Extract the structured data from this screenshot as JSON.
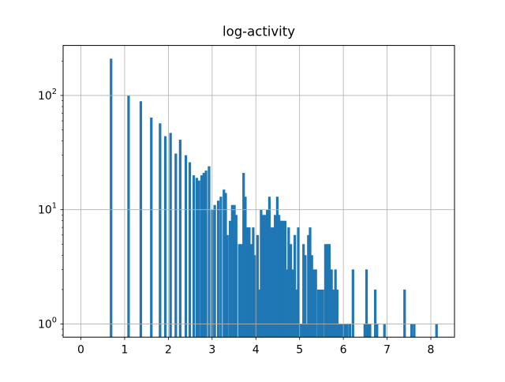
{
  "figure": {
    "background": "#ffffff"
  },
  "chart_data": {
    "type": "histogram",
    "title": "log-activity",
    "xlabel": "",
    "ylabel": "",
    "yscale": "log",
    "xlim": [
      -0.406,
      8.541
    ],
    "ylim": [
      0.766,
      274
    ],
    "x_tick_values": [
      0,
      1,
      2,
      3,
      4,
      5,
      6,
      7,
      8
    ],
    "x_tick_labels": [
      "0",
      "1",
      "2",
      "3",
      "4",
      "5",
      "6",
      "7",
      "8"
    ],
    "y_tick_values": [
      1,
      10,
      100
    ],
    "y_tick_labels": [
      {
        "mantissa": "10",
        "sup": "0"
      },
      {
        "mantissa": "10",
        "sup": "1"
      },
      {
        "mantissa": "10",
        "sup": "2"
      }
    ],
    "grid": true,
    "grid_over_bars": true,
    "bin_width": 0.058,
    "bars": [
      [
        0.69,
        210
      ],
      [
        1.09,
        100
      ],
      [
        1.37,
        89
      ],
      [
        1.61,
        64
      ],
      [
        1.81,
        57
      ],
      [
        1.93,
        44
      ],
      [
        2.05,
        47
      ],
      [
        2.17,
        31
      ],
      [
        2.27,
        41
      ],
      [
        2.4,
        30
      ],
      [
        2.49,
        26
      ],
      [
        2.58,
        20
      ],
      [
        2.65,
        19
      ],
      [
        2.7,
        18
      ],
      [
        2.76,
        20
      ],
      [
        2.81,
        21
      ],
      [
        2.86,
        22
      ],
      [
        2.93,
        24
      ],
      [
        3.0,
        10
      ],
      [
        3.06,
        11
      ],
      [
        3.14,
        12
      ],
      [
        3.2,
        13
      ],
      [
        3.27,
        15
      ],
      [
        3.31,
        14
      ],
      [
        3.35,
        6
      ],
      [
        3.41,
        8
      ],
      [
        3.46,
        11
      ],
      [
        3.51,
        11
      ],
      [
        3.55,
        9
      ],
      [
        3.62,
        5
      ],
      [
        3.67,
        5
      ],
      [
        3.72,
        21
      ],
      [
        3.76,
        13
      ],
      [
        3.81,
        7
      ],
      [
        3.85,
        7
      ],
      [
        3.9,
        5
      ],
      [
        3.94,
        7
      ],
      [
        3.99,
        4
      ],
      [
        4.04,
        6
      ],
      [
        4.08,
        2
      ],
      [
        4.12,
        10
      ],
      [
        4.17,
        9
      ],
      [
        4.21,
        9
      ],
      [
        4.26,
        10
      ],
      [
        4.31,
        13
      ],
      [
        4.35,
        7
      ],
      [
        4.4,
        7
      ],
      [
        4.44,
        9
      ],
      [
        4.49,
        13
      ],
      [
        4.53,
        9
      ],
      [
        4.58,
        8
      ],
      [
        4.62,
        8
      ],
      [
        4.67,
        8
      ],
      [
        4.71,
        3
      ],
      [
        4.75,
        7
      ],
      [
        4.8,
        5
      ],
      [
        4.84,
        3
      ],
      [
        4.89,
        6
      ],
      [
        4.93,
        2
      ],
      [
        4.97,
        7
      ],
      [
        5.01,
        1
      ],
      [
        5.05,
        1
      ],
      [
        5.09,
        5
      ],
      [
        5.13,
        4
      ],
      [
        5.17,
        1
      ],
      [
        5.2,
        6
      ],
      [
        5.24,
        7
      ],
      [
        5.28,
        4
      ],
      [
        5.32,
        3
      ],
      [
        5.37,
        3
      ],
      [
        5.43,
        2
      ],
      [
        5.48,
        2
      ],
      [
        5.53,
        2
      ],
      [
        5.59,
        5
      ],
      [
        5.64,
        5
      ],
      [
        5.68,
        5
      ],
      [
        5.73,
        3
      ],
      [
        5.78,
        2
      ],
      [
        5.82,
        3
      ],
      [
        5.86,
        2
      ],
      [
        5.91,
        1
      ],
      [
        5.95,
        1
      ],
      [
        5.99,
        1
      ],
      [
        6.04,
        1
      ],
      [
        6.09,
        1
      ],
      [
        6.15,
        1
      ],
      [
        6.22,
        3
      ],
      [
        6.49,
        1
      ],
      [
        6.53,
        3
      ],
      [
        6.57,
        1
      ],
      [
        6.61,
        1
      ],
      [
        6.73,
        2
      ],
      [
        6.77,
        1
      ],
      [
        6.94,
        1
      ],
      [
        7.4,
        2
      ],
      [
        7.56,
        1
      ],
      [
        7.62,
        1
      ],
      [
        8.13,
        1
      ]
    ],
    "colors": {
      "bar": "#1f77b4",
      "grid": "#b0b0b0",
      "axis": "#000000",
      "text": "#000000"
    }
  }
}
